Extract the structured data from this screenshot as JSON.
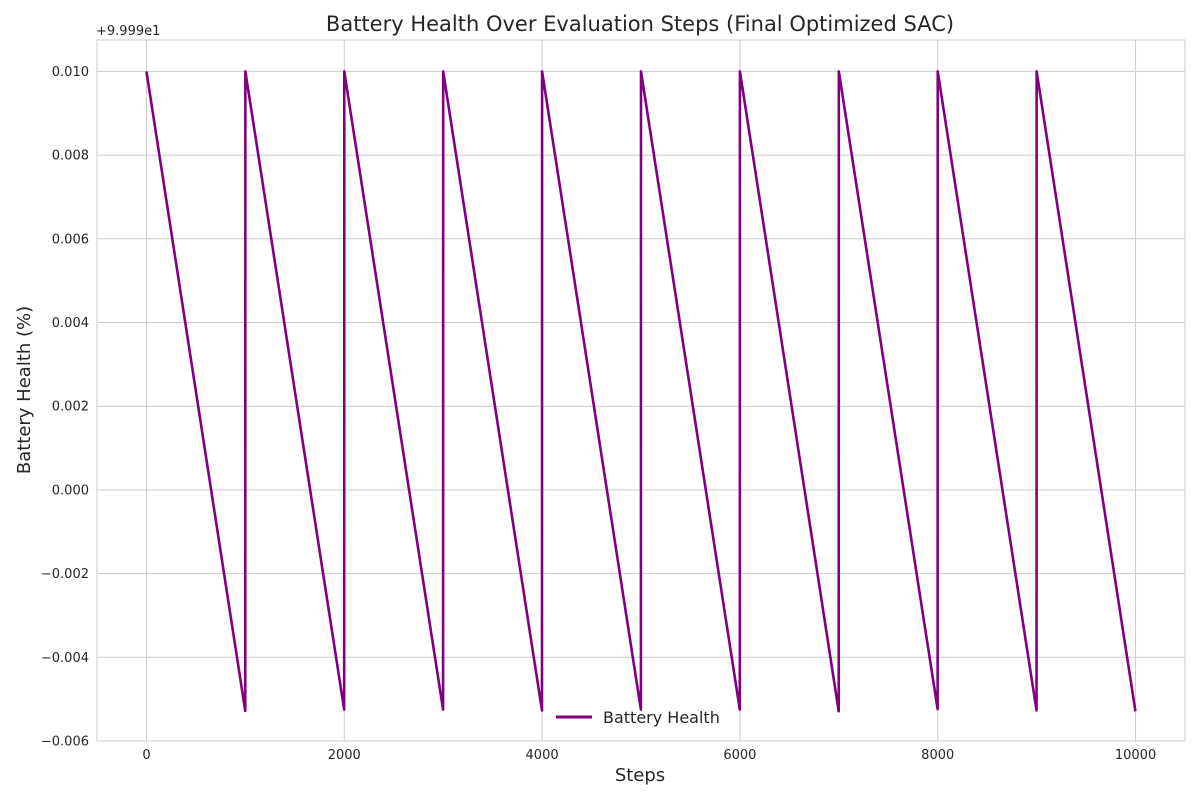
{
  "chart_data": {
    "type": "line",
    "title": "Battery Health Over Evaluation Steps (Final Optimized SAC)",
    "xlabel": "Steps",
    "ylabel": "Battery Health (%)",
    "y_offset_label": "+9.999e1",
    "xlim": [
      -500,
      10500
    ],
    "ylim": [
      -0.006,
      0.01075
    ],
    "x_ticks": [
      0,
      2000,
      4000,
      6000,
      8000,
      10000
    ],
    "x_tick_labels": [
      "0",
      "2000",
      "4000",
      "6000",
      "8000",
      "10000"
    ],
    "y_ticks": [
      -0.006,
      -0.004,
      -0.002,
      0.0,
      0.002,
      0.004,
      0.006,
      0.008,
      0.01
    ],
    "y_tick_labels": [
      "−0.006",
      "−0.004",
      "−0.002",
      "0.000",
      "0.002",
      "0.004",
      "0.006",
      "0.008",
      "0.010"
    ],
    "grid": true,
    "legend_position": "lower-center",
    "series": [
      {
        "name": "Battery Health",
        "color": "#800080",
        "x": [
          0,
          999,
          1000,
          1999,
          2000,
          2999,
          3000,
          3999,
          4000,
          4999,
          5000,
          5999,
          6000,
          6999,
          7000,
          7999,
          8000,
          8999,
          9000,
          9999
        ],
        "y": [
          0.01,
          -0.00528,
          0.01,
          -0.00525,
          0.01,
          -0.00525,
          0.01,
          -0.00527,
          0.01,
          -0.00525,
          0.01,
          -0.00525,
          0.01,
          -0.00529,
          0.01,
          -0.00524,
          0.01,
          -0.00527,
          0.01,
          -0.00529
        ]
      }
    ]
  }
}
